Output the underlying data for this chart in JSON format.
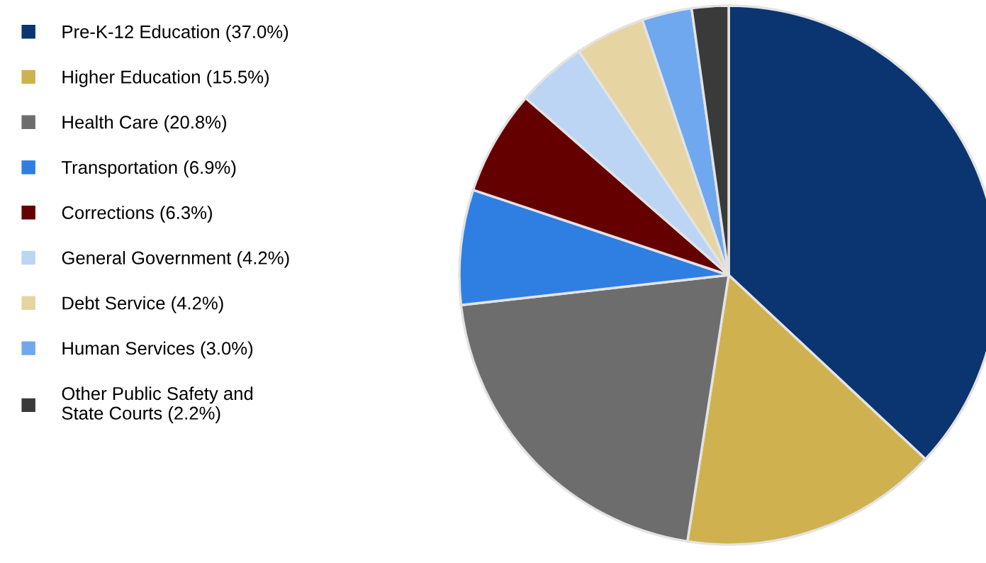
{
  "chart_data": {
    "type": "pie",
    "categories": [
      "Pre-K-12 Education (37.0%)",
      "Higher Education (15.5%)",
      "Health Care (20.8%)",
      "Transportation (6.9%)",
      "Corrections (6.3%)",
      "General Government (4.2%)",
      "Debt Service (4.2%)",
      "Human Services (3.0%)",
      "Other Public Safety and\nState Courts (2.2%)"
    ],
    "values": [
      37.0,
      15.5,
      20.8,
      6.9,
      6.3,
      4.2,
      4.2,
      3.0,
      2.2
    ],
    "colors": [
      "#0b3570",
      "#cfb24f",
      "#6d6d6d",
      "#2f7fe3",
      "#650000",
      "#bcd5f5",
      "#e6d5a2",
      "#6fa8ef",
      "#3a3a3a"
    ],
    "legend": "left"
  }
}
